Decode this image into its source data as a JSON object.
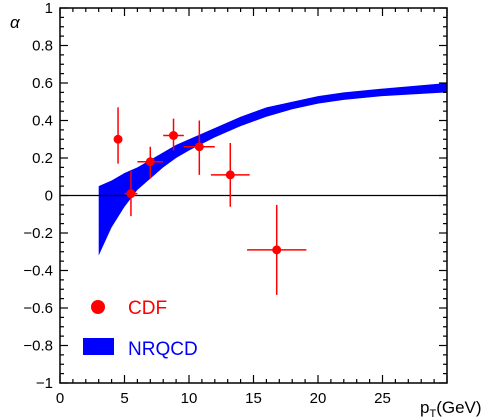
{
  "chart_data": {
    "type": "scatter",
    "xlabel": "p",
    "xlabel_sub": "T",
    "xlabel_unit": "(GeV)",
    "ylabel": "α",
    "xlim": [
      0,
      30
    ],
    "ylim": [
      -1,
      1
    ],
    "x_ticks": [
      0,
      5,
      10,
      15,
      20,
      25
    ],
    "y_ticks": [
      -1,
      -0.8,
      -0.6,
      -0.4,
      -0.2,
      0,
      0.2,
      0.4,
      0.6,
      0.8,
      1
    ],
    "y_tick_labels": [
      "−1",
      "−0.8",
      "−0.6",
      "−0.4",
      "−0.2",
      "0",
      "0.2",
      "0.4",
      "0.6",
      "0.8",
      "1"
    ],
    "zero_line": true,
    "grid": false,
    "legend_position": "bottom-left",
    "series": [
      {
        "name": "CDF",
        "kind": "points-with-errors",
        "color": "#ff0000",
        "points": [
          {
            "x": 4.5,
            "y": 0.3,
            "xerr": 0.0,
            "yerr_lo": 0.13,
            "yerr_hi": 0.17
          },
          {
            "x": 5.5,
            "y": 0.01,
            "xerr": 0.5,
            "yerr_lo": 0.12,
            "yerr_hi": 0.12
          },
          {
            "x": 7.0,
            "y": 0.18,
            "xerr": 1.0,
            "yerr_lo": 0.09,
            "yerr_hi": 0.08
          },
          {
            "x": 8.8,
            "y": 0.32,
            "xerr": 0.8,
            "yerr_lo": 0.08,
            "yerr_hi": 0.09
          },
          {
            "x": 10.8,
            "y": 0.26,
            "xerr": 1.2,
            "yerr_lo": 0.15,
            "yerr_hi": 0.14
          },
          {
            "x": 13.2,
            "y": 0.11,
            "xerr": 1.5,
            "yerr_lo": 0.17,
            "yerr_hi": 0.17
          },
          {
            "x": 16.8,
            "y": -0.29,
            "xerr": 2.3,
            "yerr_lo": 0.24,
            "yerr_hi": 0.24
          }
        ]
      },
      {
        "name": "NRQCD",
        "kind": "band",
        "color": "#0000ff",
        "x": [
          3.0,
          4.0,
          5.0,
          6.0,
          7.0,
          8.0,
          9.0,
          10.0,
          12.0,
          14.0,
          16.0,
          18.0,
          20.0,
          22.0,
          25.0,
          30.0
        ],
        "lower": [
          -0.32,
          -0.17,
          -0.06,
          0.03,
          0.09,
          0.15,
          0.2,
          0.24,
          0.31,
          0.37,
          0.42,
          0.46,
          0.49,
          0.51,
          0.53,
          0.55
        ],
        "upper": [
          0.05,
          0.08,
          0.12,
          0.15,
          0.19,
          0.23,
          0.27,
          0.3,
          0.36,
          0.42,
          0.47,
          0.5,
          0.53,
          0.55,
          0.57,
          0.6
        ]
      }
    ]
  }
}
